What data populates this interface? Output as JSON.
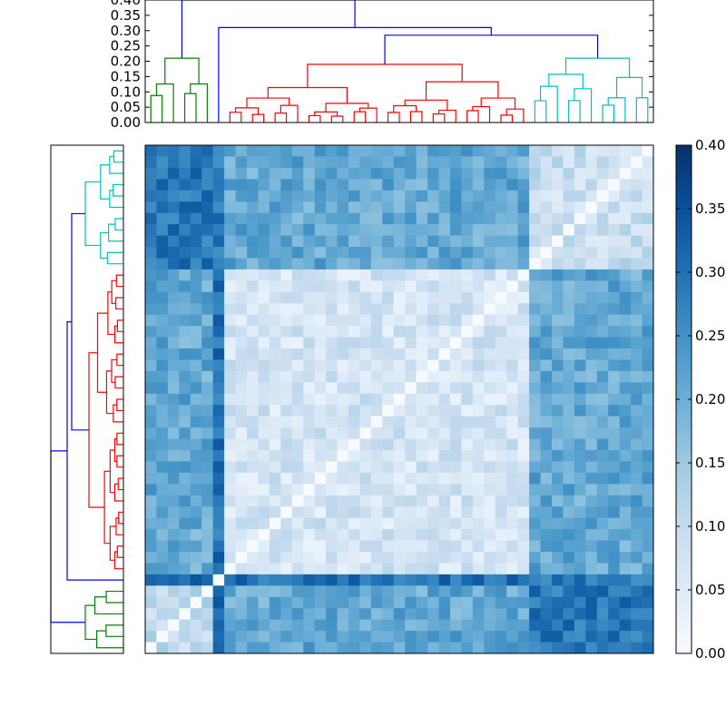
{
  "chart_data": [
    {
      "type": "dendrogram",
      "orientation": "top",
      "ylim": [
        0,
        0.4
      ],
      "yticks": [
        "0.00",
        "0.05",
        "0.10",
        "0.15",
        "0.20",
        "0.25",
        "0.30",
        "0.35",
        "0.40"
      ],
      "branch_colors": {
        "green": "#008000",
        "red": "#ff0000",
        "cyan": "#00bfbf",
        "link": "#0000ff"
      },
      "clusters": [
        {
          "color": "green",
          "leaves": 6,
          "merge_height": 0.21
        },
        {
          "color": "red",
          "leaves": 26,
          "merge_height": 0.19
        },
        {
          "color": "cyan",
          "leaves": 11,
          "merge_height": 0.21
        }
      ],
      "links": [
        {
          "join": [
            "red",
            "cyan"
          ],
          "height": 0.285
        },
        {
          "join": [
            "red+cyan",
            "spacer"
          ],
          "height": 0.31
        },
        {
          "join": [
            "green",
            "rest"
          ],
          "height": 0.4
        }
      ]
    },
    {
      "type": "dendrogram",
      "orientation": "left",
      "clusters": [
        {
          "color": "cyan",
          "leaves": 11
        },
        {
          "color": "red",
          "leaves": 26
        },
        {
          "color": "green",
          "leaves": 6
        }
      ]
    },
    {
      "type": "heatmap",
      "size": 45,
      "colormap": "Blues",
      "vmin": 0.0,
      "vmax": 0.4,
      "diagonal": 0.0,
      "note_order": "rows top→bottom are cyan, red, outlier, green; columns left→right are green, outlier, red, cyan",
      "block_means": {
        "cyan-cyan": 0.09,
        "cyan-red": 0.21,
        "cyan-green": 0.29,
        "cyan-outlier": 0.28,
        "red-red": 0.07,
        "red-green": 0.21,
        "red-outlier": 0.3,
        "green-green": 0.1,
        "green-outlier": 0.31
      },
      "colorbar": {
        "ticks": [
          "0.00",
          "0.05",
          "0.10",
          "0.15",
          "0.20",
          "0.25",
          "0.30",
          "0.35",
          "0.40"
        ]
      }
    }
  ]
}
